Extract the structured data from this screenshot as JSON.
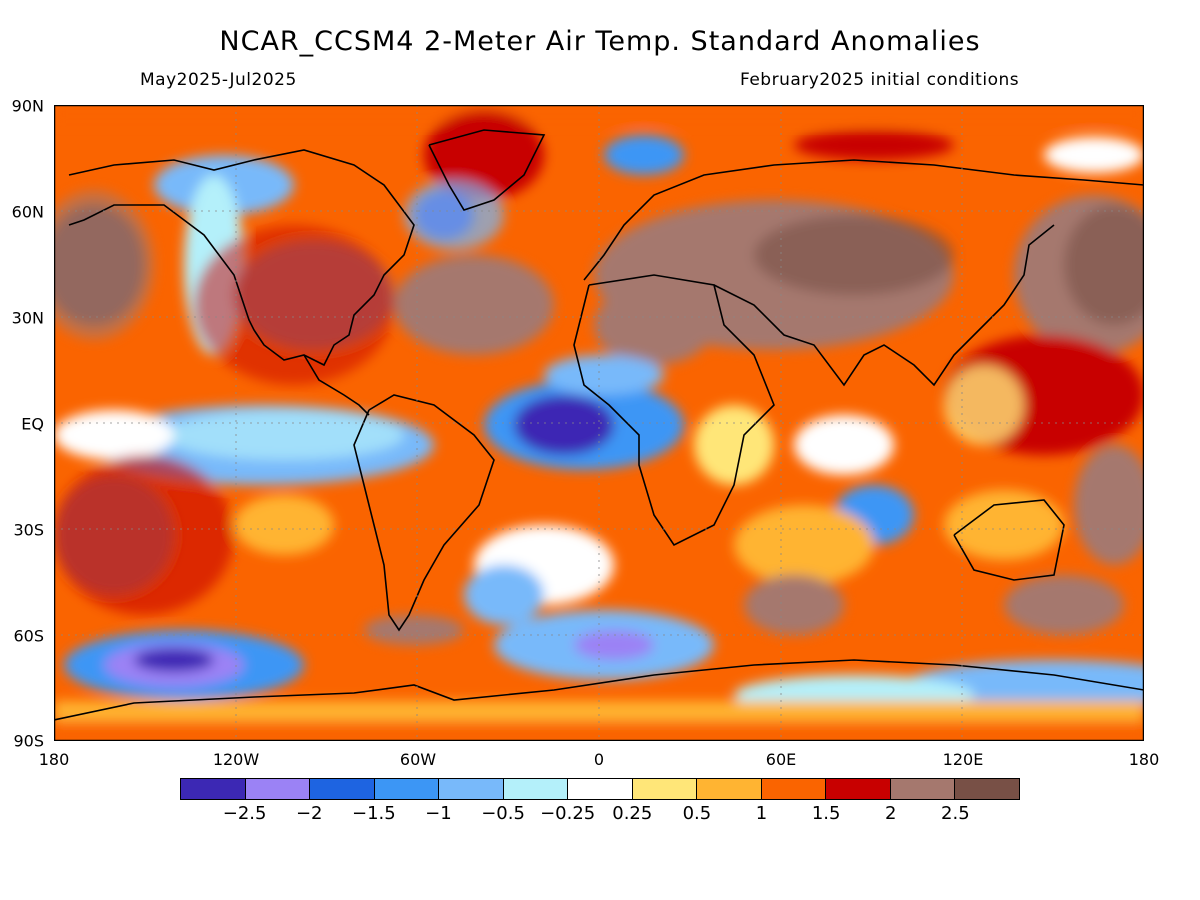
{
  "title": "NCAR_CCSM4 2-Meter Air Temp. Standard Anomalies",
  "subtitle_left": "May2025-Jul2025",
  "subtitle_right": "February2025 initial conditions",
  "lat_labels": [
    "90N",
    "60N",
    "30N",
    "EQ",
    "30S",
    "60S",
    "90S"
  ],
  "lon_labels": [
    "180",
    "120W",
    "60W",
    "0",
    "60E",
    "120E",
    "180"
  ],
  "colorbar": {
    "colors": [
      "#3c28b4",
      "#9b82f5",
      "#1e64e1",
      "#3c96f5",
      "#78b9fa",
      "#b4f0fa",
      "#ffffff",
      "#ffe678",
      "#ffb432",
      "#fa6400",
      "#c80000",
      "#a5786e",
      "#785046"
    ],
    "labels": [
      "-2.5",
      "-2",
      "-1.5",
      "-1",
      "-0.5",
      "-0.25",
      "0.25",
      "0.5",
      "1",
      "1.5",
      "2",
      "2.5"
    ]
  },
  "colors": {
    "warm_strong": "#785046",
    "warm_high": "#a5786e",
    "warm_mid": "#c80000",
    "warm": "#fa6400",
    "warm_low": "#ffb432",
    "warm_faint": "#ffe678",
    "neutral": "#ffffff",
    "cool_faint": "#b4f0fa",
    "cool_low": "#78b9fa",
    "cool": "#3c96f5",
    "cool_mid": "#1e64e1",
    "cool_high": "#9b82f5",
    "cool_strong": "#3c28b4"
  }
}
